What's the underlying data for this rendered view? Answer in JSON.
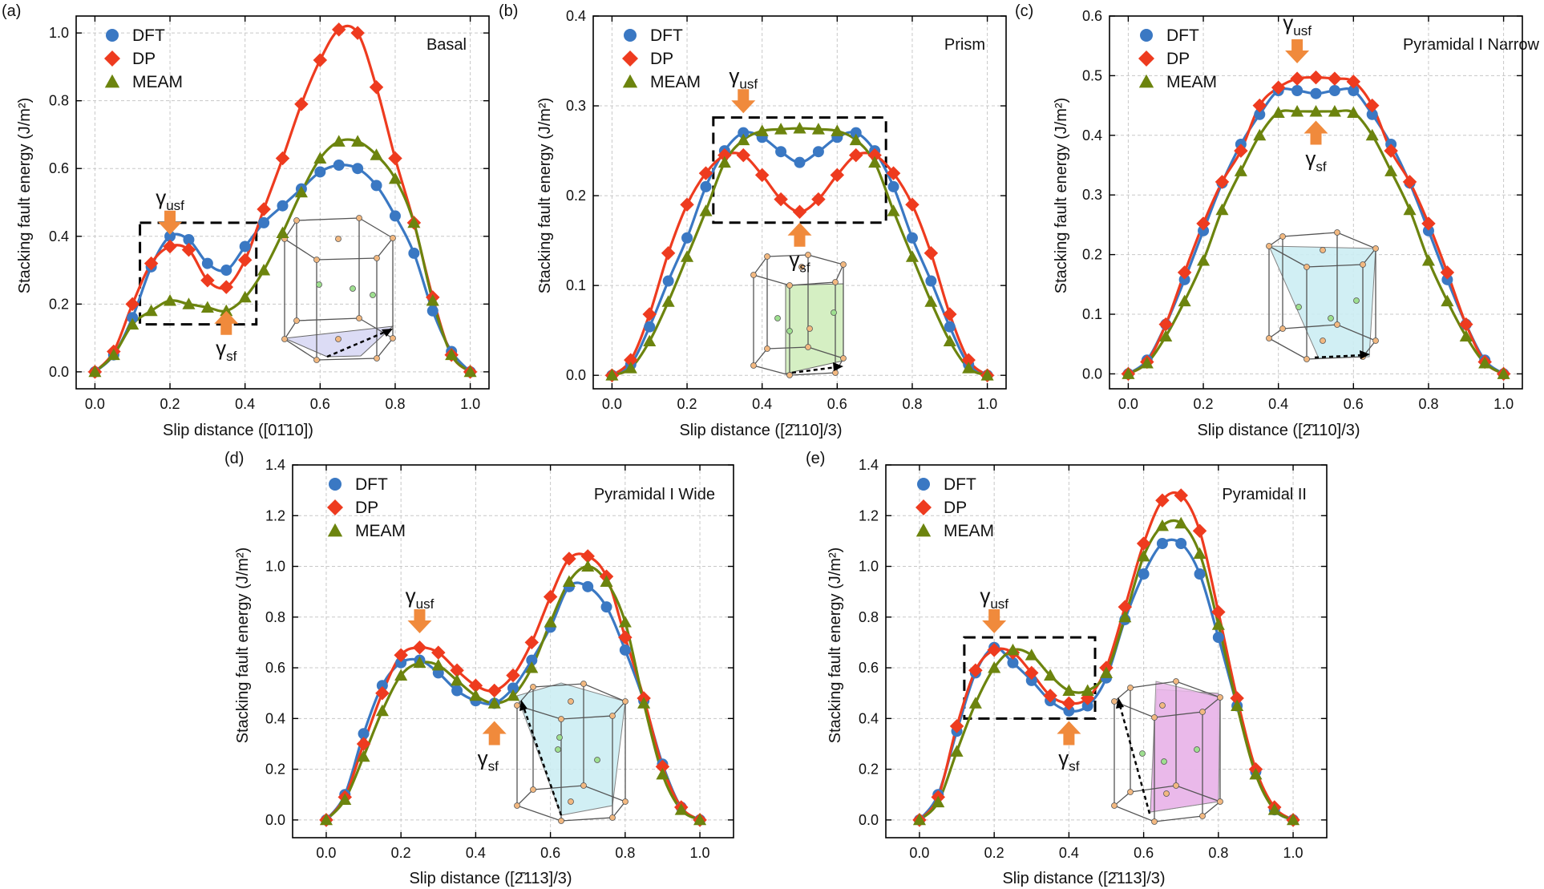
{
  "colors": {
    "DFT": "#3a78c3",
    "DP": "#ee3b1f",
    "MEAM": "#6c840e",
    "arrow": "#f08a3c",
    "basal_plane": "#dcdcf5",
    "prism_plane": "#d5efc3",
    "pyr1_plane": "#cdeef3",
    "pyr2_plane": "#eab9ea",
    "atom_orange": "#f2b880",
    "atom_green": "#9edf8f"
  },
  "legend": [
    "DFT",
    "DP",
    "MEAM"
  ],
  "annotations": {
    "usf_sym": "γ",
    "usf_sub": "usf",
    "sf_sym": "γ",
    "sf_sub": "sf"
  },
  "chart_data": [
    {
      "type": "line",
      "panel_label": "(a)",
      "title": "Basal",
      "xlabel": "Slip distance ([01̄10])",
      "ylabel": "Stacking fault energy (J/m²)",
      "xlim": [
        -0.05,
        1.05
      ],
      "ylim": [
        -0.05,
        1.05
      ],
      "xticks": [
        0,
        0.2,
        0.4,
        0.6,
        0.8,
        1.0
      ],
      "yticks": [
        0,
        0.2,
        0.4,
        0.6,
        0.8,
        1.0
      ],
      "xtick_labels": [
        "0.0",
        "0.2",
        "0.4",
        "0.6",
        "0.8",
        "1.0"
      ],
      "ytick_labels": [
        "0.0",
        "0.2",
        "0.4",
        "0.6",
        "0.8",
        "1.0"
      ],
      "x": [
        0,
        0.05,
        0.1,
        0.15,
        0.2,
        0.25,
        0.3,
        0.35,
        0.4,
        0.45,
        0.5,
        0.55,
        0.6,
        0.65,
        0.7,
        0.75,
        0.8,
        0.85,
        0.9,
        0.95,
        1.0
      ],
      "series": [
        {
          "name": "DFT",
          "values": [
            0.0,
            0.05,
            0.16,
            0.31,
            0.4,
            0.39,
            0.32,
            0.3,
            0.37,
            0.44,
            0.49,
            0.54,
            0.59,
            0.61,
            0.6,
            0.55,
            0.46,
            0.35,
            0.18,
            0.06,
            0.0
          ]
        },
        {
          "name": "DP",
          "values": [
            0.0,
            0.06,
            0.2,
            0.32,
            0.37,
            0.36,
            0.27,
            0.25,
            0.33,
            0.48,
            0.63,
            0.79,
            0.92,
            1.01,
            1.0,
            0.84,
            0.63,
            0.44,
            0.22,
            0.05,
            0.0
          ]
        },
        {
          "name": "MEAM",
          "values": [
            0.0,
            0.05,
            0.14,
            0.18,
            0.21,
            0.2,
            0.19,
            0.18,
            0.22,
            0.3,
            0.41,
            0.53,
            0.63,
            0.68,
            0.68,
            0.64,
            0.57,
            0.44,
            0.21,
            0.05,
            0.0
          ]
        }
      ],
      "usf": [
        0.2,
        0.4
      ],
      "sf": [
        0.35,
        0.18
      ],
      "box": [
        0.12,
        0.14,
        0.43,
        0.44
      ]
    },
    {
      "type": "line",
      "panel_label": "(b)",
      "title": "Prism",
      "xlabel": "Slip distance ([2̄110]/3)",
      "ylabel": "Stacking fault energy (J/m²)",
      "xlim": [
        -0.05,
        1.05
      ],
      "ylim": [
        -0.015,
        0.4
      ],
      "xticks": [
        0,
        0.2,
        0.4,
        0.6,
        0.8,
        1.0
      ],
      "yticks": [
        0,
        0.1,
        0.2,
        0.3,
        0.4
      ],
      "xtick_labels": [
        "0.0",
        "0.2",
        "0.4",
        "0.6",
        "0.8",
        "1.0"
      ],
      "ytick_labels": [
        "0.0",
        "0.1",
        "0.2",
        "0.3",
        "0.4"
      ],
      "x": [
        0,
        0.05,
        0.1,
        0.15,
        0.2,
        0.25,
        0.3,
        0.35,
        0.4,
        0.45,
        0.5,
        0.55,
        0.6,
        0.65,
        0.7,
        0.75,
        0.8,
        0.85,
        0.9,
        0.95,
        1.0
      ],
      "series": [
        {
          "name": "DFT",
          "values": [
            0.0,
            0.012,
            0.054,
            0.105,
            0.153,
            0.21,
            0.25,
            0.27,
            0.265,
            0.249,
            0.237,
            0.249,
            0.265,
            0.27,
            0.25,
            0.21,
            0.153,
            0.105,
            0.054,
            0.012,
            0.0
          ]
        },
        {
          "name": "DP",
          "values": [
            0.0,
            0.017,
            0.068,
            0.136,
            0.19,
            0.225,
            0.245,
            0.245,
            0.223,
            0.196,
            0.182,
            0.196,
            0.223,
            0.245,
            0.245,
            0.225,
            0.19,
            0.136,
            0.068,
            0.017,
            0.0
          ]
        },
        {
          "name": "MEAM",
          "values": [
            0.0,
            0.008,
            0.038,
            0.082,
            0.132,
            0.183,
            0.237,
            0.262,
            0.272,
            0.274,
            0.275,
            0.274,
            0.272,
            0.262,
            0.237,
            0.183,
            0.132,
            0.082,
            0.038,
            0.008,
            0.0
          ]
        }
      ],
      "usf": [
        0.35,
        0.29
      ],
      "sf": [
        0.5,
        0.17
      ],
      "box": [
        0.27,
        0.17,
        0.73,
        0.287
      ]
    },
    {
      "type": "line",
      "panel_label": "(c)",
      "title": "Pyramidal I Narrow",
      "xlabel": "Slip distance ([2̄110]/3)",
      "ylabel": "Stacking fault energy (J/m²)",
      "xlim": [
        -0.05,
        1.05
      ],
      "ylim": [
        -0.025,
        0.6
      ],
      "xticks": [
        0,
        0.2,
        0.4,
        0.6,
        0.8,
        1.0
      ],
      "yticks": [
        0,
        0.1,
        0.2,
        0.3,
        0.4,
        0.5,
        0.6
      ],
      "xtick_labels": [
        "0.0",
        "0.2",
        "0.4",
        "0.6",
        "0.8",
        "1.0"
      ],
      "ytick_labels": [
        "0.0",
        "0.1",
        "0.2",
        "0.3",
        "0.4",
        "0.5",
        "0.6"
      ],
      "x": [
        0,
        0.05,
        0.1,
        0.15,
        0.2,
        0.25,
        0.3,
        0.35,
        0.4,
        0.45,
        0.5,
        0.55,
        0.6,
        0.65,
        0.7,
        0.75,
        0.8,
        0.85,
        0.9,
        0.95,
        1.0
      ],
      "series": [
        {
          "name": "DFT",
          "values": [
            0.0,
            0.023,
            0.083,
            0.158,
            0.24,
            0.32,
            0.385,
            0.435,
            0.475,
            0.475,
            0.47,
            0.475,
            0.475,
            0.435,
            0.385,
            0.32,
            0.24,
            0.158,
            0.083,
            0.023,
            0.0
          ]
        },
        {
          "name": "DP",
          "values": [
            0.0,
            0.02,
            0.083,
            0.17,
            0.252,
            0.322,
            0.374,
            0.45,
            0.48,
            0.495,
            0.497,
            0.495,
            0.49,
            0.45,
            0.374,
            0.322,
            0.252,
            0.17,
            0.083,
            0.02,
            0.0
          ]
        },
        {
          "name": "MEAM",
          "values": [
            0.0,
            0.018,
            0.063,
            0.122,
            0.19,
            0.275,
            0.34,
            0.4,
            0.438,
            0.44,
            0.44,
            0.44,
            0.438,
            0.4,
            0.34,
            0.275,
            0.19,
            0.122,
            0.063,
            0.018,
            0.0
          ]
        }
      ],
      "usf": [
        0.45,
        0.51
      ],
      "sf": [
        0.5,
        0.43
      ]
    },
    {
      "type": "line",
      "panel_label": "(d)",
      "title": "Pyramidal I Wide",
      "xlabel": "Slip distance ([2̄113]/3)",
      "ylabel": "Stacking fault energy (J/m²)",
      "xlim": [
        -0.09,
        1.09
      ],
      "ylim": [
        -0.07,
        1.4
      ],
      "xticks": [
        0,
        0.2,
        0.4,
        0.6,
        0.8,
        1.0
      ],
      "yticks": [
        0,
        0.2,
        0.4,
        0.6,
        0.8,
        1.0,
        1.2,
        1.4
      ],
      "xtick_labels": [
        "0.0",
        "0.2",
        "0.4",
        "0.6",
        "0.8",
        "1.0"
      ],
      "ytick_labels": [
        "0.0",
        "0.2",
        "0.4",
        "0.6",
        "0.8",
        "1.0",
        "1.2",
        "1.4"
      ],
      "x": [
        0,
        0.05,
        0.1,
        0.15,
        0.2,
        0.25,
        0.3,
        0.35,
        0.4,
        0.45,
        0.5,
        0.55,
        0.6,
        0.65,
        0.7,
        0.75,
        0.8,
        0.85,
        0.9,
        0.95,
        1.0
      ],
      "series": [
        {
          "name": "DFT",
          "values": [
            0.0,
            0.1,
            0.34,
            0.53,
            0.62,
            0.63,
            0.58,
            0.51,
            0.47,
            0.46,
            0.52,
            0.63,
            0.76,
            0.92,
            0.92,
            0.84,
            0.67,
            0.47,
            0.22,
            0.05,
            0.0
          ]
        },
        {
          "name": "DP",
          "values": [
            0.0,
            0.09,
            0.3,
            0.5,
            0.65,
            0.68,
            0.66,
            0.59,
            0.53,
            0.51,
            0.57,
            0.7,
            0.88,
            1.03,
            1.04,
            0.96,
            0.72,
            0.48,
            0.21,
            0.05,
            0.0
          ]
        },
        {
          "name": "MEAM",
          "values": [
            0.0,
            0.08,
            0.25,
            0.43,
            0.57,
            0.62,
            0.61,
            0.55,
            0.49,
            0.46,
            0.49,
            0.6,
            0.78,
            0.94,
            1.0,
            0.94,
            0.78,
            0.46,
            0.18,
            0.04,
            0.0
          ]
        }
      ],
      "usf": [
        0.25,
        0.73
      ],
      "sf": [
        0.45,
        0.39
      ]
    },
    {
      "type": "line",
      "panel_label": "(e)",
      "title": "Pyramidal II",
      "xlabel": "Slip distance ([2̄113]/3)",
      "ylabel": "Stacking fault energy (J/m²)",
      "xlim": [
        -0.09,
        1.09
      ],
      "ylim": [
        -0.07,
        1.4
      ],
      "xticks": [
        0,
        0.2,
        0.4,
        0.6,
        0.8,
        1.0
      ],
      "yticks": [
        0,
        0.2,
        0.4,
        0.6,
        0.8,
        1.0,
        1.2,
        1.4
      ],
      "xtick_labels": [
        "0.0",
        "0.2",
        "0.4",
        "0.6",
        "0.8",
        "1.0"
      ],
      "ytick_labels": [
        "0.0",
        "0.2",
        "0.4",
        "0.6",
        "0.8",
        "1.0",
        "1.2",
        "1.4"
      ],
      "x": [
        0,
        0.05,
        0.1,
        0.15,
        0.2,
        0.25,
        0.3,
        0.35,
        0.4,
        0.45,
        0.5,
        0.55,
        0.6,
        0.65,
        0.7,
        0.75,
        0.8,
        0.85,
        0.9,
        0.95,
        1.0
      ],
      "series": [
        {
          "name": "DFT",
          "values": [
            0.0,
            0.1,
            0.35,
            0.58,
            0.68,
            0.62,
            0.55,
            0.47,
            0.43,
            0.45,
            0.56,
            0.79,
            0.97,
            1.09,
            1.09,
            0.97,
            0.72,
            0.45,
            0.19,
            0.04,
            0.0
          ]
        },
        {
          "name": "DP",
          "values": [
            0.0,
            0.09,
            0.37,
            0.59,
            0.67,
            0.66,
            0.58,
            0.49,
            0.46,
            0.48,
            0.6,
            0.84,
            1.09,
            1.26,
            1.28,
            1.14,
            0.82,
            0.48,
            0.2,
            0.05,
            0.0
          ]
        },
        {
          "name": "MEAM",
          "values": [
            0.0,
            0.07,
            0.27,
            0.46,
            0.6,
            0.67,
            0.65,
            0.57,
            0.51,
            0.51,
            0.58,
            0.8,
            1.04,
            1.16,
            1.17,
            1.05,
            0.77,
            0.45,
            0.18,
            0.04,
            0.0
          ]
        }
      ],
      "usf": [
        0.2,
        0.73
      ],
      "sf": [
        0.4,
        0.39
      ],
      "box": [
        0.12,
        0.4,
        0.47,
        0.72
      ]
    }
  ]
}
